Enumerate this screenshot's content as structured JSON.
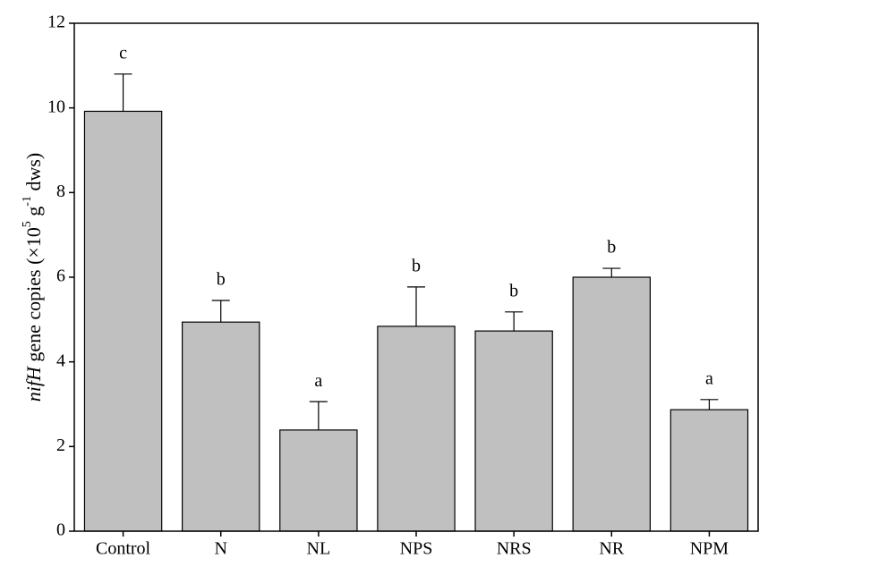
{
  "chart_data": {
    "type": "bar",
    "y_label": {
      "italic": "nifH",
      "text": " gene copies (×10",
      "sup1": "5",
      "mid": " g",
      "sup2": "-1",
      "end": " dws)"
    },
    "categories": [
      "Control",
      "N",
      "NL",
      "NPS",
      "NRS",
      "NR",
      "NPM"
    ],
    "values": [
      9.92,
      4.94,
      2.39,
      4.84,
      4.73,
      6.0,
      2.87
    ],
    "errors": [
      0.88,
      0.51,
      0.67,
      0.93,
      0.45,
      0.21,
      0.24
    ],
    "letters": [
      "c",
      "b",
      "a",
      "b",
      "b",
      "b",
      "a"
    ],
    "color": "#c0c0c0",
    "ylim": [
      0,
      12
    ],
    "yticks": [
      0,
      2,
      4,
      6,
      8,
      10,
      12
    ]
  }
}
